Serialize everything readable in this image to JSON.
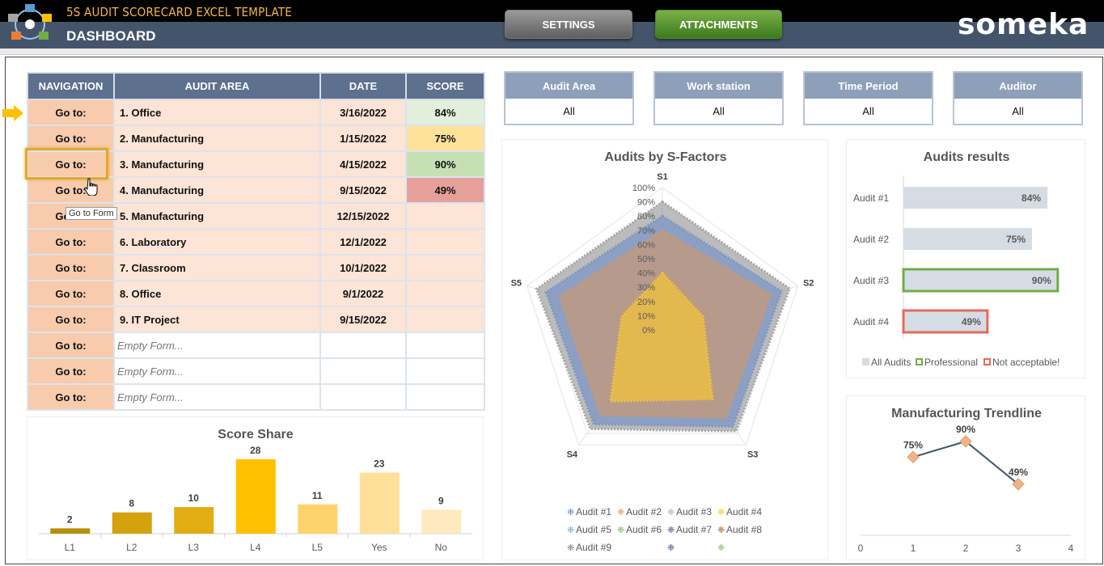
{
  "header": {
    "app_title": "5S AUDIT SCORECARD EXCEL TEMPLATE",
    "page_title": "DASHBOARD",
    "settings_label": "SETTINGS",
    "attachments_label": "ATTACHMENTS",
    "brand": "someka"
  },
  "nav_table": {
    "headers": [
      "NAVIGATION",
      "AUDIT AREA",
      "DATE",
      "SCORE"
    ],
    "rows": [
      {
        "goto": "Go to:",
        "area": "1. Office",
        "date": "3/16/2022",
        "score": "84%",
        "score_color": "#e2efda"
      },
      {
        "goto": "Go to:",
        "area": "2. Manufacturing",
        "date": "1/15/2022",
        "score": "75%",
        "score_color": "#ffe29a"
      },
      {
        "goto": "Go to:",
        "area": "3. Manufacturing",
        "date": "4/15/2022",
        "score": "90%",
        "score_color": "#c6e0b4"
      },
      {
        "goto": "Go to:",
        "area": "4. Manufacturing",
        "date": "9/15/2022",
        "score": "49%",
        "score_color": "#e6a09a"
      },
      {
        "goto": "Go to:",
        "area": "5. Manufacturing",
        "date": "12/15/2022",
        "score": "",
        "score_color": ""
      },
      {
        "goto": "Go to:",
        "area": "6. Laboratory",
        "date": "12/1/2022",
        "score": "",
        "score_color": ""
      },
      {
        "goto": "Go to:",
        "area": "7. Classroom",
        "date": "10/1/2022",
        "score": "",
        "score_color": ""
      },
      {
        "goto": "Go to:",
        "area": "8. Office",
        "date": "9/1/2022",
        "score": "",
        "score_color": ""
      },
      {
        "goto": "Go to:",
        "area": "9. IT Project",
        "date": "9/15/2022",
        "score": "",
        "score_color": ""
      },
      {
        "goto": "Go to:",
        "area": "Empty Form...",
        "date": "",
        "score": "",
        "score_color": "",
        "empty": true
      },
      {
        "goto": "Go to:",
        "area": "Empty Form...",
        "date": "",
        "score": "",
        "score_color": "",
        "empty": true
      },
      {
        "goto": "Go to:",
        "area": "Empty Form...",
        "date": "",
        "score": "",
        "score_color": "",
        "empty": true
      }
    ],
    "tooltip": "Go to Form"
  },
  "filters": [
    {
      "label": "Audit Area",
      "value": "All"
    },
    {
      "label": "Work station",
      "value": "All"
    },
    {
      "label": "Time Period",
      "value": "All"
    },
    {
      "label": "Auditor",
      "value": "All"
    }
  ],
  "colors": {
    "header_blue": "#5d708d",
    "gold": "#ffc000",
    "green": "#70ad47",
    "red": "#e88c80"
  },
  "chart_data": [
    {
      "type": "bar",
      "title": "Score Share",
      "categories": [
        "L1",
        "L2",
        "L3",
        "L4",
        "L5",
        "Yes",
        "No"
      ],
      "values": [
        2,
        8,
        10,
        28,
        11,
        23,
        9
      ],
      "colors": [
        "#b8900a",
        "#d4a20d",
        "#e2ad12",
        "#ffc000",
        "#ffd36b",
        "#ffdf99",
        "#ffe9bf"
      ]
    },
    {
      "type": "radar",
      "title": "Audits by S-Factors",
      "axes": [
        "S1",
        "S2",
        "S3",
        "S4",
        "S5"
      ],
      "ticks": [
        "100%",
        "90%",
        "80%",
        "70%",
        "60%",
        "50%",
        "40%",
        "30%",
        "20%",
        "10%",
        "0%"
      ],
      "series": [
        {
          "name": "Audit #3",
          "values": [
            0.9,
            0.94,
            0.88,
            0.86,
            0.93
          ],
          "color": "#a6a6a6"
        },
        {
          "name": "Audit #1",
          "values": [
            0.8,
            0.88,
            0.84,
            0.82,
            0.86
          ],
          "color": "#7e96c4"
        },
        {
          "name": "Audit #2",
          "values": [
            0.7,
            0.8,
            0.76,
            0.74,
            0.76
          ],
          "color": "#c49a7a"
        },
        {
          "name": "Audit #4",
          "values": [
            0.4,
            0.3,
            0.6,
            0.62,
            0.3
          ],
          "color": "#f2c13a"
        }
      ],
      "legend": [
        "Audit #1",
        "Audit #2",
        "Audit #3",
        "Audit #4",
        "Audit #5",
        "Audit #6",
        "Audit #7",
        "Audit #8",
        "Audit #9"
      ],
      "legend_colors": [
        "#4472c4",
        "#ed7d31",
        "#a5a5a5",
        "#ffc000",
        "#5b9bd5",
        "#70ad47",
        "#264478",
        "#9e480e",
        "#636363"
      ]
    },
    {
      "type": "bar",
      "orientation": "horizontal",
      "title": "Audits results",
      "categories": [
        "Audit #1",
        "Audit #2",
        "Audit #3",
        "Audit #4"
      ],
      "values": [
        84,
        75,
        90,
        49
      ],
      "labels": [
        "84%",
        "75%",
        "90%",
        "49%"
      ],
      "border": [
        "",
        "",
        "#70ad47",
        "#e56b5d"
      ],
      "legend": [
        "All Audits",
        "Professional",
        "Not acceptable!"
      ]
    },
    {
      "type": "line",
      "title": "Manufacturing Trendline",
      "x": [
        1,
        2,
        3
      ],
      "values": [
        75,
        90,
        49
      ],
      "labels": [
        "75%",
        "90%",
        "49%"
      ],
      "xticks": [
        "0",
        "1",
        "2",
        "3",
        "4"
      ]
    }
  ]
}
